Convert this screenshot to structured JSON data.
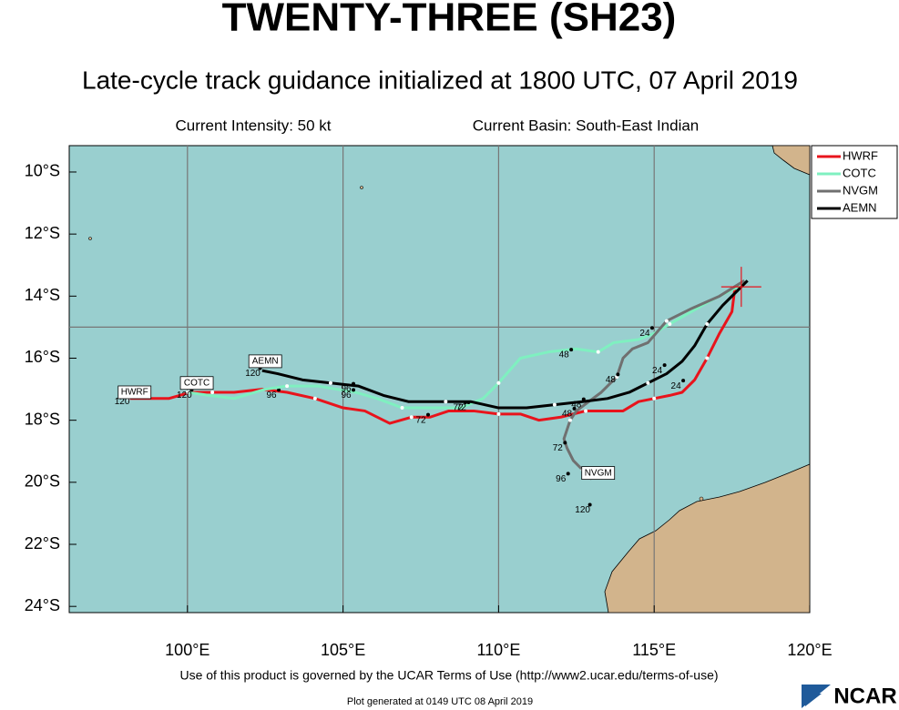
{
  "chart_data": {
    "type": "track",
    "title": "TWENTY-THREE (SH23)",
    "subtitle": "Late-cycle track guidance initialized at 1800 UTC, 07 April 2019",
    "intensity": "Current Intensity: 50 kt",
    "basin": "Current Basin: South-East Indian",
    "terms": "Use of this product is governed by the UCAR Terms of Use (http://www2.ucar.edu/terms-of-use)",
    "generated": "Plot generated at 0149 UTC   08 April 2019",
    "logo": "NCAR",
    "xlim": [
      96.2,
      120
    ],
    "ylim": [
      -24.2,
      -9.15
    ],
    "xticks": [
      {
        "value": 100,
        "label": "100°E"
      },
      {
        "value": 105,
        "label": "105°E"
      },
      {
        "value": 110,
        "label": "110°E"
      },
      {
        "value": 115,
        "label": "115°E"
      },
      {
        "value": 120,
        "label": "120°E"
      }
    ],
    "yticks": [
      {
        "value": -10,
        "label": "10°S"
      },
      {
        "value": -12,
        "label": "12°S"
      },
      {
        "value": -14,
        "label": "14°S"
      },
      {
        "value": -16,
        "label": "16°S"
      },
      {
        "value": -18,
        "label": "18°S"
      },
      {
        "value": -20,
        "label": "20°S"
      },
      {
        "value": -22,
        "label": "22°S"
      },
      {
        "value": -24,
        "label": "24°S"
      }
    ],
    "grid_lons": [
      100,
      105,
      110,
      115
    ],
    "grid_lats": [
      -15
    ],
    "current_position": {
      "x": 117.8,
      "y": -13.7
    },
    "legend": "upper right",
    "series": [
      {
        "name": "HWRF",
        "color": "#e8141c",
        "x": [
          117.6,
          117.5,
          117.1,
          116.7,
          116.3,
          115.9,
          115.5,
          115.0,
          114.5,
          114.0,
          113.4,
          112.8,
          112.0,
          111.3,
          110.7,
          110.0,
          109.2,
          108.4,
          107.8,
          107.2,
          106.5,
          105.7,
          105.0,
          104.1,
          103.2,
          102.4,
          101.5,
          100.8,
          100.1,
          99.4,
          98.5,
          98.1
        ],
        "values": [
          -13.7,
          -14.5,
          -15.2,
          -16.0,
          -16.7,
          -17.1,
          -17.2,
          -17.3,
          -17.4,
          -17.7,
          -17.7,
          -17.7,
          -17.9,
          -18.0,
          -17.8,
          -17.8,
          -17.7,
          -17.7,
          -17.9,
          -17.9,
          -18.1,
          -17.7,
          -17.6,
          -17.3,
          -17.1,
          -17.0,
          -17.1,
          -17.1,
          -17.1,
          -17.3,
          -17.3,
          -17.3
        ],
        "hour_labels": [
          {
            "label": "24",
            "x": 115.7,
            "y": -16.9
          },
          {
            "label": "48",
            "x": 112.2,
            "y": -17.8
          },
          {
            "label": "72",
            "x": 107.5,
            "y": -18.0
          },
          {
            "label": "96",
            "x": 102.7,
            "y": -17.2
          },
          {
            "label": "120",
            "x": 97.9,
            "y": -17.4
          }
        ],
        "tag": {
          "x": 98.3,
          "y": -17.1
        }
      },
      {
        "name": "COTC",
        "color": "#7ff0c0",
        "x": [
          117.9,
          116.9,
          116.2,
          115.5,
          115.0,
          114.5,
          113.7,
          113.2,
          112.5,
          111.6,
          110.7,
          110.0,
          109.5,
          108.8,
          107.7,
          106.9,
          106.1,
          105.4,
          104.2,
          103.2,
          102.5,
          101.5,
          100.7,
          100.0
        ],
        "values": [
          -13.6,
          -14.1,
          -14.5,
          -14.9,
          -15.2,
          -15.4,
          -15.5,
          -15.8,
          -15.7,
          -15.8,
          -16.0,
          -16.8,
          -17.3,
          -17.6,
          -17.6,
          -17.6,
          -17.3,
          -17.1,
          -16.9,
          -16.9,
          -17.0,
          -17.3,
          -17.2,
          -17.1
        ],
        "hour_labels": [
          {
            "label": "24",
            "x": 114.7,
            "y": -15.2
          },
          {
            "label": "48",
            "x": 112.1,
            "y": -15.9
          },
          {
            "label": "72",
            "x": 108.7,
            "y": -17.6
          },
          {
            "label": "96",
            "x": 105.1,
            "y": -17.0
          },
          {
            "label": "120",
            "x": 99.9,
            "y": -17.2
          }
        ],
        "tag": {
          "x": 100.3,
          "y": -16.8
        }
      },
      {
        "name": "NVGM",
        "color": "#707070",
        "x": [
          117.9,
          117.1,
          116.2,
          115.4,
          114.8,
          114.3,
          114.0,
          113.8,
          113.3,
          112.9,
          112.5,
          112.3,
          112.1,
          112.2,
          112.4,
          112.7,
          113.0
        ],
        "values": [
          -13.5,
          -14.0,
          -14.4,
          -14.8,
          -15.5,
          -15.7,
          -16.0,
          -16.6,
          -17.1,
          -17.4,
          -17.7,
          -18.0,
          -18.6,
          -18.9,
          -19.3,
          -19.6,
          -19.9
        ],
        "hour_labels": [
          {
            "label": "48",
            "x": 113.6,
            "y": -16.7
          },
          {
            "label": "72",
            "x": 111.9,
            "y": -18.9
          },
          {
            "label": "96",
            "x": 112.0,
            "y": -19.9
          },
          {
            "label": "120",
            "x": 112.7,
            "y": -20.9
          }
        ],
        "tag": {
          "x": 113.2,
          "y": -19.7
        }
      },
      {
        "name": "AEMN",
        "color": "#000000",
        "x": [
          118.0,
          117.7,
          117.2,
          116.7,
          116.3,
          115.9,
          115.4,
          114.8,
          114.2,
          113.5,
          112.7,
          111.8,
          110.9,
          110.0,
          109.1,
          108.3,
          107.1,
          106.3,
          105.5,
          104.6,
          103.7,
          102.9,
          102.4
        ],
        "values": [
          -13.5,
          -13.8,
          -14.3,
          -14.9,
          -15.6,
          -16.1,
          -16.5,
          -16.8,
          -17.1,
          -17.3,
          -17.4,
          -17.5,
          -17.6,
          -17.6,
          -17.4,
          -17.4,
          -17.4,
          -17.2,
          -16.9,
          -16.8,
          -16.7,
          -16.5,
          -16.4
        ],
        "hour_labels": [
          {
            "label": "24",
            "x": 115.1,
            "y": -16.4
          },
          {
            "label": "48",
            "x": 112.5,
            "y": -17.5
          },
          {
            "label": "72",
            "x": 108.8,
            "y": -17.6
          },
          {
            "label": "96",
            "x": 105.1,
            "y": -17.2
          },
          {
            "label": "120",
            "x": 102.1,
            "y": -16.5
          }
        ],
        "tag": {
          "x": 102.5,
          "y": -16.1
        }
      }
    ]
  }
}
